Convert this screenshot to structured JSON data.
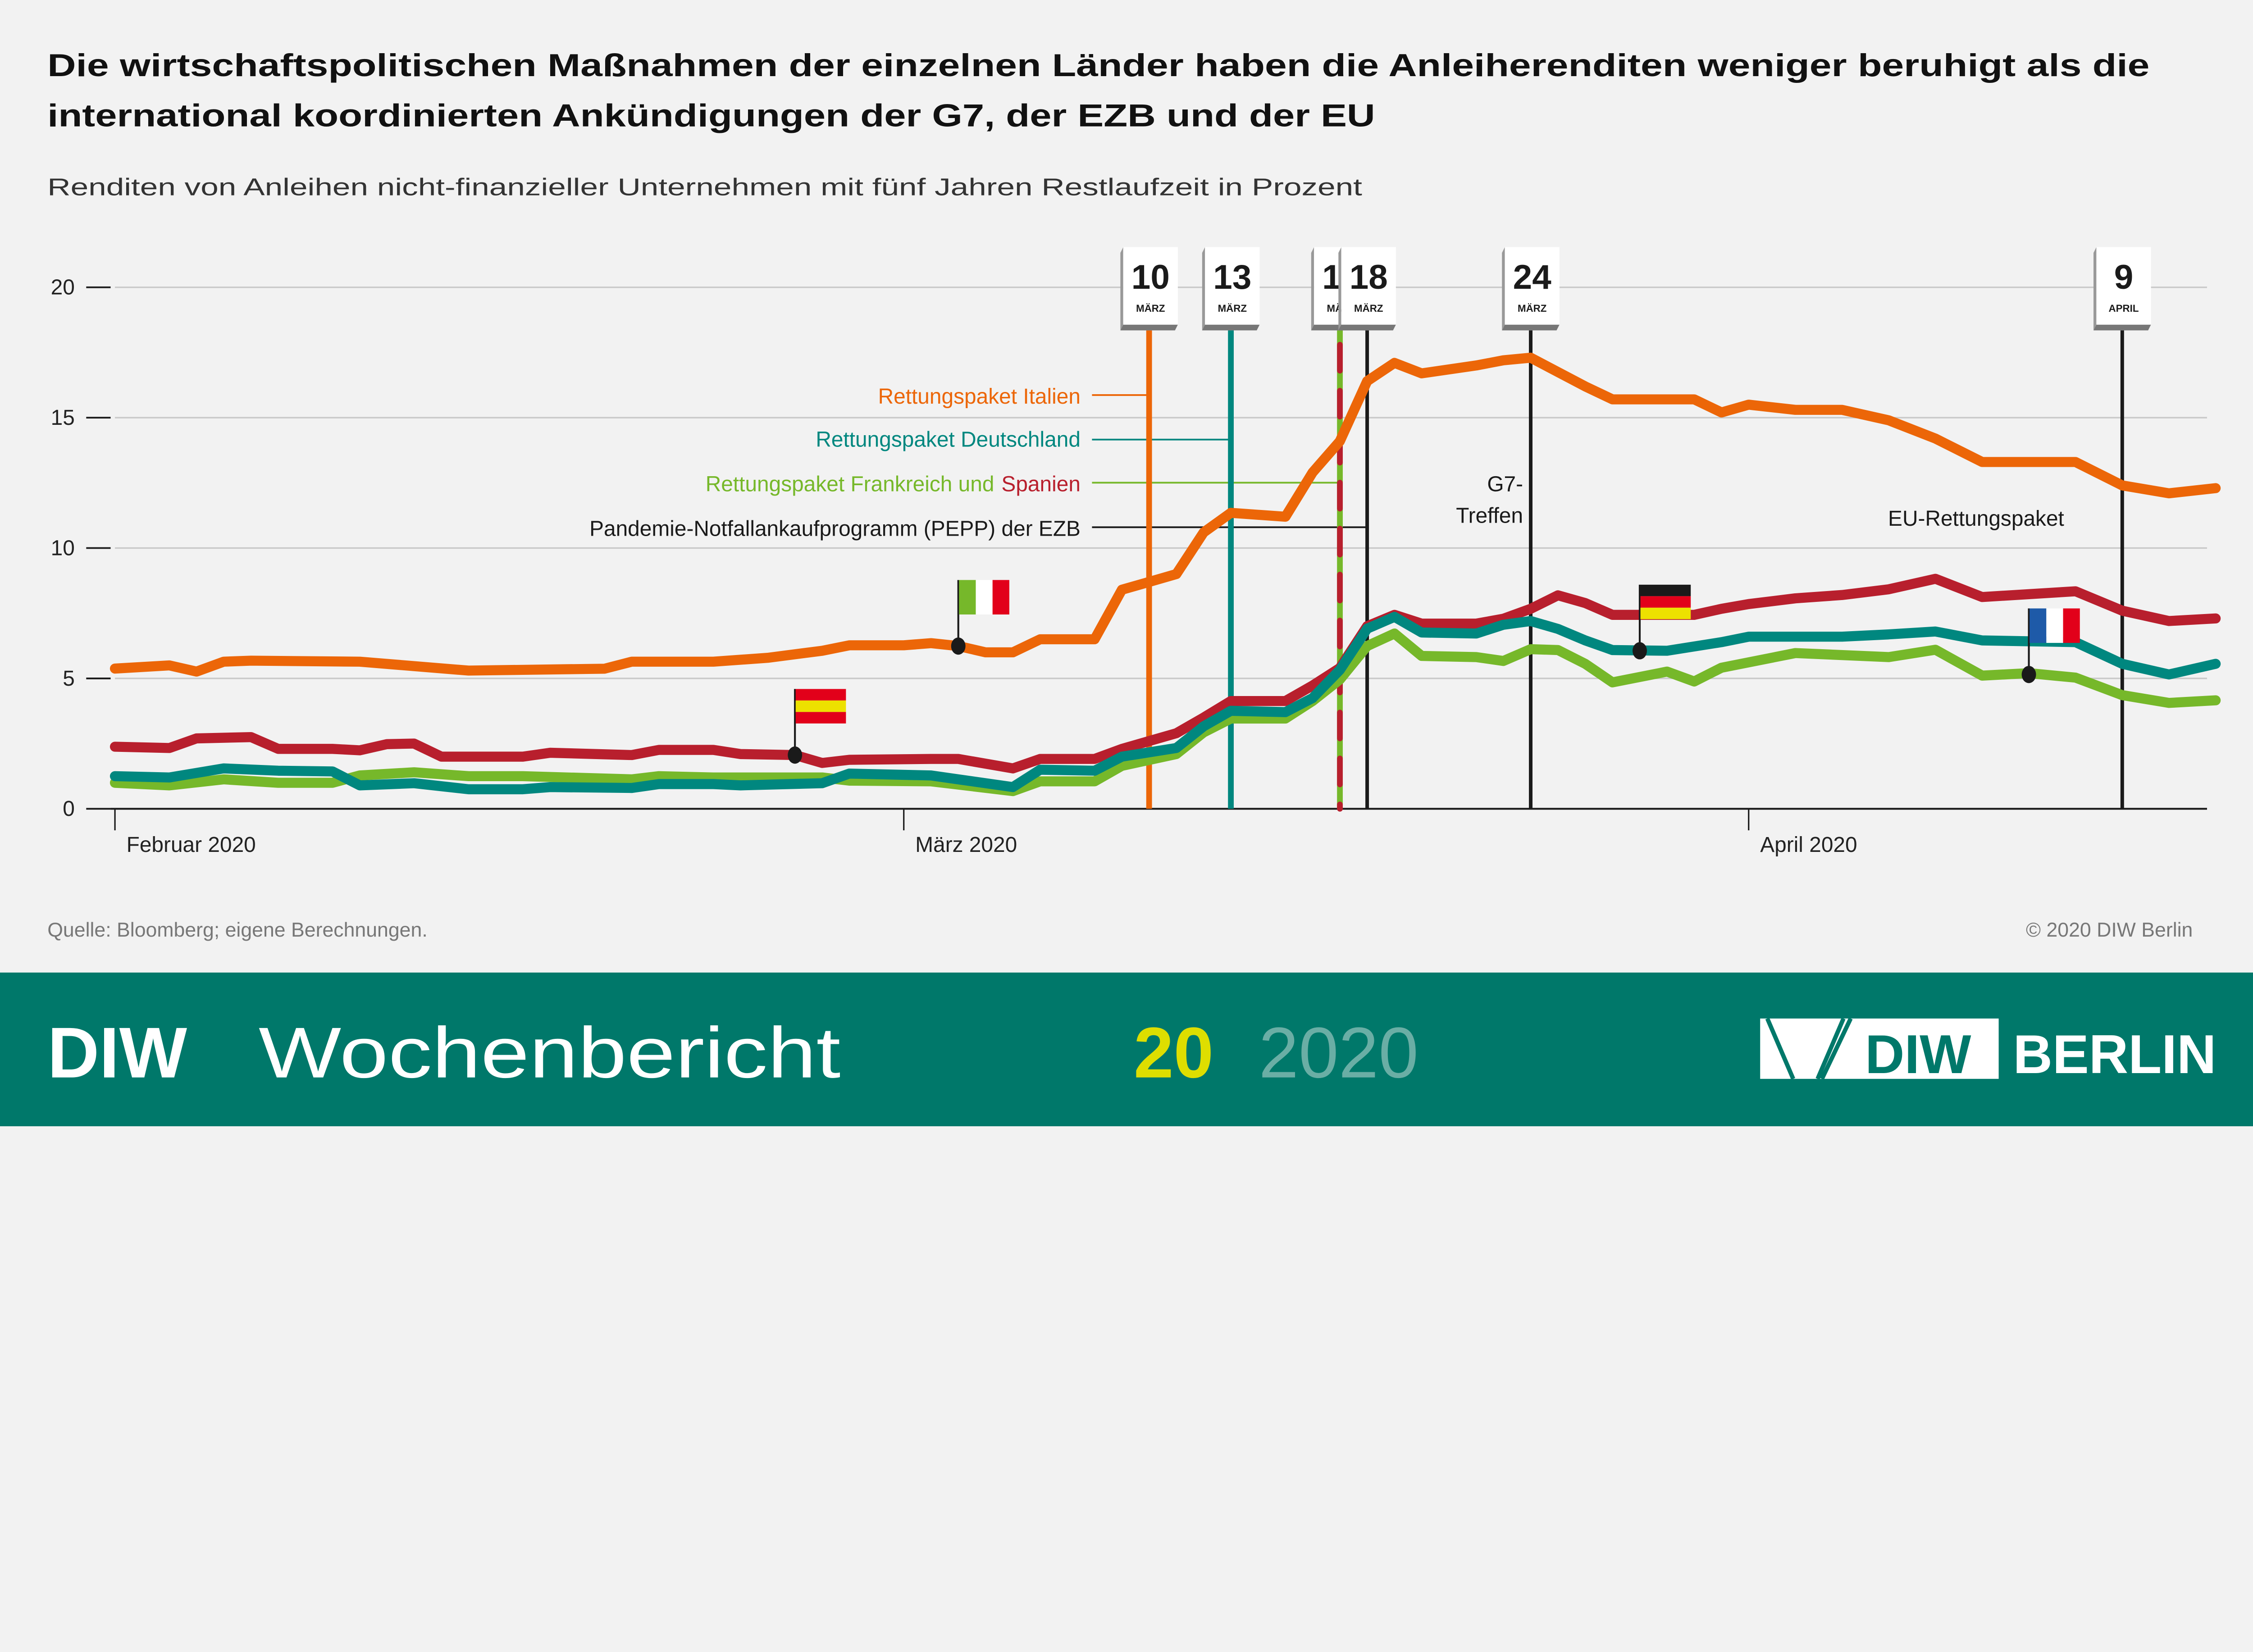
{
  "title_line1": "Die wirtschaftspolitischen Maßnahmen der einzelnen Länder haben die Anleiherenditen weniger beruhigt als die",
  "title_line2": "international koordinierten Ankündigungen der G7, der EZB und der EU",
  "subtitle": "Renditen von Anleihen nicht-finanzieller Unternehmen mit fünf Jahren Restlaufzeit in Prozent",
  "source": "Quelle: Bloomberg; eigene Berechnungen.",
  "copyright": "© 2020 DIW Berlin",
  "footer": {
    "brand_bold": "DIW",
    "brand_rest": "Wochenbericht",
    "issue": "20",
    "year": "2020",
    "logo_diw": "DIW",
    "logo_berlin": "BERLIN",
    "bg_color": "#00786a",
    "issue_color": "#dede00",
    "year_color": "#6aaea5"
  },
  "chart_data": {
    "type": "line",
    "title": "",
    "xlabel": "",
    "ylabel": "",
    "ylim": [
      0,
      20
    ],
    "yticks": [
      "0",
      "5",
      "10",
      "15",
      "20"
    ],
    "xticks": [
      {
        "date": "2020-02-01",
        "label": "Februar 2020"
      },
      {
        "date": "2020-03-01",
        "label": "März 2020"
      },
      {
        "date": "2020-04-01",
        "label": "April 2020"
      }
    ],
    "grid": true,
    "series": [
      {
        "flag": "spain-flag",
        "color": "#b81f2d",
        "points": [
          [
            "2020-02-01",
            2.38
          ],
          [
            "2020-02-03",
            2.33
          ],
          [
            "2020-02-04",
            2.7
          ],
          [
            "2020-02-06",
            2.75
          ],
          [
            "2020-02-07",
            2.3
          ],
          [
            "2020-02-09",
            2.3
          ],
          [
            "2020-02-10",
            2.24
          ],
          [
            "2020-02-11",
            2.48
          ],
          [
            "2020-02-12",
            2.5
          ],
          [
            "2020-02-13",
            2.0
          ],
          [
            "2020-02-16",
            2.0
          ],
          [
            "2020-02-17",
            2.15
          ],
          [
            "2020-02-20",
            2.06
          ],
          [
            "2020-02-21",
            2.26
          ],
          [
            "2020-02-23",
            2.26
          ],
          [
            "2020-02-24",
            2.1
          ],
          [
            "2020-02-26",
            2.06
          ],
          [
            "2020-02-27",
            1.76
          ],
          [
            "2020-02-28",
            1.88
          ],
          [
            "2020-03-02",
            1.91
          ],
          [
            "2020-03-03",
            1.91
          ],
          [
            "2020-03-05",
            1.55
          ],
          [
            "2020-03-06",
            1.91
          ],
          [
            "2020-03-08",
            1.91
          ],
          [
            "2020-03-09",
            2.3
          ],
          [
            "2020-03-11",
            2.9
          ],
          [
            "2020-03-12",
            3.5
          ],
          [
            "2020-03-13",
            4.13
          ],
          [
            "2020-03-15",
            4.13
          ],
          [
            "2020-03-16",
            4.73
          ],
          [
            "2020-03-17",
            5.4
          ],
          [
            "2020-03-18",
            7.0
          ],
          [
            "2020-03-19",
            7.44
          ],
          [
            "2020-03-20",
            7.1
          ],
          [
            "2020-03-22",
            7.1
          ],
          [
            "2020-03-23",
            7.29
          ],
          [
            "2020-03-24",
            7.67
          ],
          [
            "2020-03-25",
            8.19
          ],
          [
            "2020-03-26",
            7.89
          ],
          [
            "2020-03-27",
            7.44
          ],
          [
            "2020-03-30",
            7.44
          ],
          [
            "2020-03-31",
            7.67
          ],
          [
            "2020-04-01",
            7.85
          ],
          [
            "2020-04-02",
            8.07
          ],
          [
            "2020-04-03",
            8.2
          ],
          [
            "2020-04-04",
            8.42
          ],
          [
            "2020-04-05",
            8.82
          ],
          [
            "2020-04-06",
            8.12
          ],
          [
            "2020-04-08",
            8.34
          ],
          [
            "2020-04-09",
            7.6
          ],
          [
            "2020-04-10",
            7.2
          ],
          [
            "2020-04-11",
            7.3
          ]
        ]
      },
      {
        "flag": "france-flag",
        "color": "#76b82a",
        "points": [
          [
            "2020-02-01",
            1.0
          ],
          [
            "2020-02-03",
            0.9
          ],
          [
            "2020-02-05",
            1.13
          ],
          [
            "2020-02-07",
            1.0
          ],
          [
            "2020-02-09",
            1.0
          ],
          [
            "2020-02-10",
            1.28
          ],
          [
            "2020-02-12",
            1.4
          ],
          [
            "2020-02-14",
            1.25
          ],
          [
            "2020-02-16",
            1.25
          ],
          [
            "2020-02-20",
            1.13
          ],
          [
            "2020-02-21",
            1.25
          ],
          [
            "2020-02-23",
            1.2
          ],
          [
            "2020-02-27",
            1.2
          ],
          [
            "2020-02-28",
            1.08
          ],
          [
            "2020-03-02",
            1.05
          ],
          [
            "2020-03-05",
            0.68
          ],
          [
            "2020-03-06",
            1.05
          ],
          [
            "2020-03-08",
            1.05
          ],
          [
            "2020-03-09",
            1.65
          ],
          [
            "2020-03-11",
            2.1
          ],
          [
            "2020-03-12",
            2.93
          ],
          [
            "2020-03-13",
            3.46
          ],
          [
            "2020-03-15",
            3.46
          ],
          [
            "2020-03-16",
            4.13
          ],
          [
            "2020-03-17",
            4.96
          ],
          [
            "2020-03-18",
            6.24
          ],
          [
            "2020-03-19",
            6.72
          ],
          [
            "2020-03-20",
            5.86
          ],
          [
            "2020-03-22",
            5.82
          ],
          [
            "2020-03-23",
            5.67
          ],
          [
            "2020-03-24",
            6.12
          ],
          [
            "2020-03-25",
            6.09
          ],
          [
            "2020-03-26",
            5.56
          ],
          [
            "2020-03-27",
            4.85
          ],
          [
            "2020-03-29",
            5.26
          ],
          [
            "2020-03-30",
            4.88
          ],
          [
            "2020-03-31",
            5.41
          ],
          [
            "2020-04-02",
            5.97
          ],
          [
            "2020-04-04",
            5.82
          ],
          [
            "2020-04-05",
            6.1
          ],
          [
            "2020-04-06",
            5.11
          ],
          [
            "2020-04-07",
            5.2
          ],
          [
            "2020-04-08",
            5.03
          ],
          [
            "2020-04-09",
            4.36
          ],
          [
            "2020-04-10",
            4.06
          ],
          [
            "2020-04-11",
            4.16
          ]
        ]
      },
      {
        "flag": "germany-flag",
        "color": "#00877f",
        "points": [
          [
            "2020-02-01",
            1.25
          ],
          [
            "2020-02-03",
            1.2
          ],
          [
            "2020-02-05",
            1.55
          ],
          [
            "2020-02-07",
            1.46
          ],
          [
            "2020-02-09",
            1.43
          ],
          [
            "2020-02-10",
            0.9
          ],
          [
            "2020-02-12",
            0.98
          ],
          [
            "2020-02-14",
            0.75
          ],
          [
            "2020-02-16",
            0.75
          ],
          [
            "2020-02-17",
            0.83
          ],
          [
            "2020-02-20",
            0.8
          ],
          [
            "2020-02-21",
            0.95
          ],
          [
            "2020-02-23",
            0.95
          ],
          [
            "2020-02-24",
            0.9
          ],
          [
            "2020-02-27",
            0.98
          ],
          [
            "2020-02-28",
            1.35
          ],
          [
            "2020-03-02",
            1.28
          ],
          [
            "2020-03-03",
            1.13
          ],
          [
            "2020-03-05",
            0.83
          ],
          [
            "2020-03-06",
            1.5
          ],
          [
            "2020-03-08",
            1.46
          ],
          [
            "2020-03-09",
            2.0
          ],
          [
            "2020-03-11",
            2.33
          ],
          [
            "2020-03-12",
            3.16
          ],
          [
            "2020-03-13",
            3.76
          ],
          [
            "2020-03-15",
            3.71
          ],
          [
            "2020-03-16",
            4.25
          ],
          [
            "2020-03-17",
            5.33
          ],
          [
            "2020-03-18",
            6.91
          ],
          [
            "2020-03-19",
            7.36
          ],
          [
            "2020-03-20",
            6.76
          ],
          [
            "2020-03-22",
            6.72
          ],
          [
            "2020-03-23",
            7.06
          ],
          [
            "2020-03-24",
            7.2
          ],
          [
            "2020-03-25",
            6.9
          ],
          [
            "2020-03-26",
            6.46
          ],
          [
            "2020-03-27",
            6.09
          ],
          [
            "2020-03-29",
            6.06
          ],
          [
            "2020-03-31",
            6.39
          ],
          [
            "2020-04-01",
            6.6
          ],
          [
            "2020-04-03",
            6.6
          ],
          [
            "2020-04-04",
            6.69
          ],
          [
            "2020-04-05",
            6.8
          ],
          [
            "2020-04-06",
            6.46
          ],
          [
            "2020-04-08",
            6.39
          ],
          [
            "2020-04-09",
            5.56
          ],
          [
            "2020-04-10",
            5.15
          ],
          [
            "2020-04-11",
            5.56
          ]
        ]
      },
      {
        "flag": "italy-flag",
        "color": "#ec6608",
        "points": [
          [
            "2020-02-01",
            5.38
          ],
          [
            "2020-02-03",
            5.5
          ],
          [
            "2020-02-04",
            5.26
          ],
          [
            "2020-02-05",
            5.64
          ],
          [
            "2020-02-06",
            5.68
          ],
          [
            "2020-02-10",
            5.64
          ],
          [
            "2020-02-14",
            5.3
          ],
          [
            "2020-02-19",
            5.37
          ],
          [
            "2020-02-20",
            5.64
          ],
          [
            "2020-02-23",
            5.64
          ],
          [
            "2020-02-25",
            5.79
          ],
          [
            "2020-02-27",
            6.06
          ],
          [
            "2020-02-28",
            6.27
          ],
          [
            "2020-03-01",
            6.27
          ],
          [
            "2020-03-02",
            6.35
          ],
          [
            "2020-03-03",
            6.24
          ],
          [
            "2020-03-04",
            6.0
          ],
          [
            "2020-03-05",
            6.0
          ],
          [
            "2020-03-06",
            6.5
          ],
          [
            "2020-03-08",
            6.5
          ],
          [
            "2020-03-09",
            8.4
          ],
          [
            "2020-03-10",
            8.7
          ],
          [
            "2020-03-11",
            9.0
          ],
          [
            "2020-03-12",
            10.6
          ],
          [
            "2020-03-13",
            11.35
          ],
          [
            "2020-03-15",
            11.2
          ],
          [
            "2020-03-16",
            12.9
          ],
          [
            "2020-03-17",
            14.1
          ],
          [
            "2020-03-18",
            16.4
          ],
          [
            "2020-03-19",
            17.1
          ],
          [
            "2020-03-20",
            16.7
          ],
          [
            "2020-03-22",
            17.0
          ],
          [
            "2020-03-23",
            17.2
          ],
          [
            "2020-03-24",
            17.3
          ],
          [
            "2020-03-26",
            16.2
          ],
          [
            "2020-03-27",
            15.7
          ],
          [
            "2020-03-30",
            15.7
          ],
          [
            "2020-03-31",
            15.2
          ],
          [
            "2020-04-01",
            15.5
          ],
          [
            "2020-04-02",
            15.3
          ],
          [
            "2020-04-03",
            15.3
          ],
          [
            "2020-04-04",
            14.9
          ],
          [
            "2020-04-05",
            14.2
          ],
          [
            "2020-04-06",
            13.3
          ],
          [
            "2020-04-08",
            13.3
          ],
          [
            "2020-04-09",
            12.4
          ],
          [
            "2020-04-10",
            12.1
          ],
          [
            "2020-04-11",
            12.3
          ]
        ]
      }
    ],
    "flags": [
      {
        "icon": "spain-flag",
        "date": "2020-02-26",
        "value": 2.06,
        "colors": [
          "#e2001a",
          "#ede100",
          "#e2001a"
        ],
        "orient": "h"
      },
      {
        "icon": "italy-flag",
        "date": "2020-03-03",
        "value": 6.24,
        "colors": [
          "#76b82a",
          "#ffffff",
          "#e2001a"
        ],
        "orient": "v"
      },
      {
        "icon": "germany-flag",
        "date": "2020-03-28",
        "value": 6.06,
        "colors": [
          "#1a1a1a",
          "#e2001a",
          "#ede100"
        ],
        "orient": "h"
      },
      {
        "icon": "france-flag",
        "date": "2020-04-07",
        "value": 5.15,
        "colors": [
          "#1e5aa8",
          "#ffffff",
          "#e2001a"
        ],
        "orient": "v"
      }
    ],
    "events": [
      {
        "date": "2020-03-10",
        "day": "10",
        "month": "MÄRZ",
        "color": "#ec6608",
        "style": "solid"
      },
      {
        "date": "2020-03-13",
        "day": "13",
        "month": "MÄRZ",
        "color": "#00877f",
        "style": "solid"
      },
      {
        "date": "2020-03-17",
        "day": "17",
        "month": "MÄRZ",
        "color": "#76b82a",
        "color2": "#b81f2d",
        "style": "dashed"
      },
      {
        "date": "2020-03-18",
        "day": "18",
        "month": "MÄRZ",
        "color": "#1a1a1a",
        "style": "solid"
      },
      {
        "date": "2020-03-24",
        "day": "24",
        "month": "MÄRZ",
        "color": "#1a1a1a",
        "style": "solid"
      },
      {
        "date": "2020-04-09",
        "day": "9",
        "month": "APRIL",
        "color": "#1a1a1a",
        "style": "solid"
      }
    ],
    "annotations": {
      "italien": "Rettungspaket Italien",
      "deutschland": "Rettungspaket Deutschland",
      "frankreich": "Rettungspaket Frankreich und",
      "spanien": "Spanien",
      "pepp": "Pandemie-Notfallankaufprogramm (PEPP) der EZB",
      "g7_line1": "G7-",
      "g7_line2": "Treffen",
      "eu": "EU-Rettungspaket"
    }
  }
}
